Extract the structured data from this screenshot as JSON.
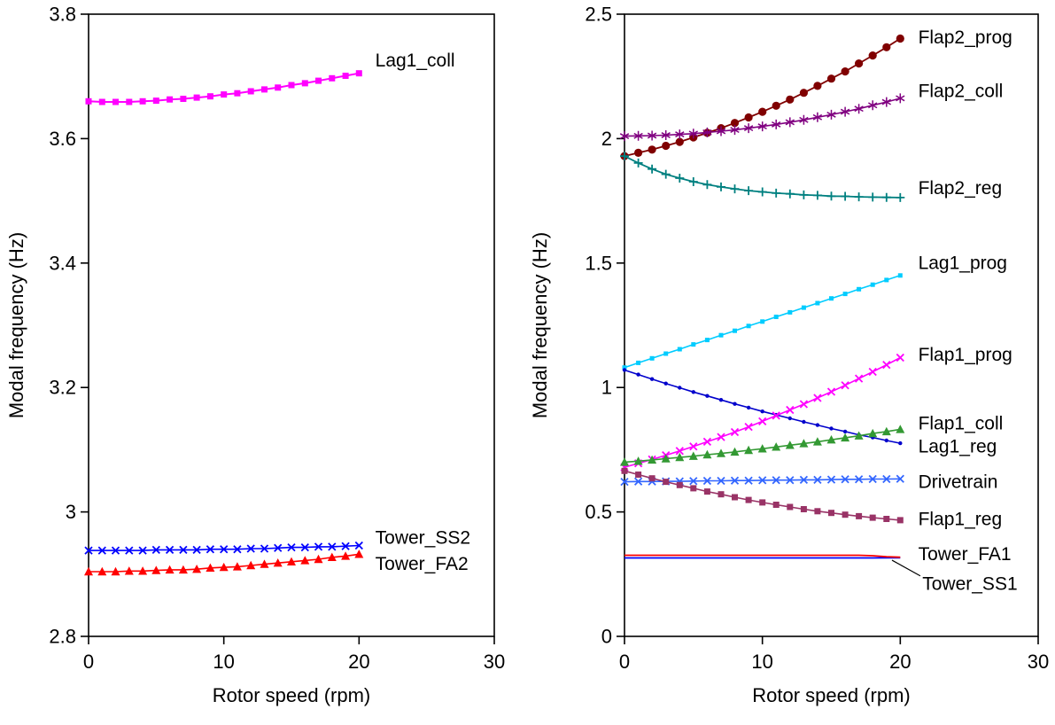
{
  "figure": {
    "background": "#ffffff"
  },
  "chart_data": [
    {
      "type": "line",
      "title": "",
      "xlabel": "Rotor speed (rpm)",
      "ylabel": "Modal frequency (Hz)",
      "xlim": [
        0,
        30
      ],
      "ylim": [
        2.8,
        3.8
      ],
      "grid": false,
      "legend": "inline-labels",
      "xticks": [
        {
          "v": 0,
          "label": "0"
        },
        {
          "v": 10,
          "label": "10"
        },
        {
          "v": 20,
          "label": "20"
        },
        {
          "v": 30,
          "label": "30"
        }
      ],
      "yticks": [
        {
          "v": 2.8,
          "label": "2.8"
        },
        {
          "v": 3.0,
          "label": "3"
        },
        {
          "v": 3.2,
          "label": "3.2"
        },
        {
          "v": 3.4,
          "label": "3.4"
        },
        {
          "v": 3.6,
          "label": "3.6"
        },
        {
          "v": 3.8,
          "label": "3.8"
        }
      ],
      "x": [
        0,
        1,
        2,
        3,
        4,
        5,
        6,
        7,
        8,
        9,
        10,
        11,
        12,
        13,
        14,
        15,
        16,
        17,
        18,
        19,
        20
      ],
      "series": [
        {
          "name": "Lag1_coll",
          "color": "#FF00FF",
          "marker": "square",
          "line_width": 2,
          "values": [
            3.66,
            3.659,
            3.659,
            3.659,
            3.66,
            3.661,
            3.663,
            3.664,
            3.666,
            3.668,
            3.671,
            3.673,
            3.676,
            3.679,
            3.682,
            3.686,
            3.689,
            3.693,
            3.697,
            3.701,
            3.705
          ],
          "label": {
            "text": "Lag1_coll",
            "x": 21.2,
            "y": 3.725
          }
        },
        {
          "name": "Tower_SS2",
          "color": "#0000FF",
          "marker": "x",
          "line_width": 1.6,
          "values": [
            2.938,
            2.938,
            2.938,
            2.938,
            2.938,
            2.939,
            2.939,
            2.939,
            2.939,
            2.94,
            2.94,
            2.94,
            2.941,
            2.941,
            2.942,
            2.943,
            2.943,
            2.944,
            2.944,
            2.945,
            2.946
          ],
          "label": {
            "text": "Tower_SS2",
            "x": 21.2,
            "y": 2.958
          }
        },
        {
          "name": "Tower_FA2",
          "color": "#FF0000",
          "marker": "triangle",
          "line_width": 1.6,
          "values": [
            2.904,
            2.904,
            2.904,
            2.905,
            2.905,
            2.906,
            2.907,
            2.907,
            2.908,
            2.91,
            2.911,
            2.912,
            2.914,
            2.916,
            2.918,
            2.92,
            2.922,
            2.924,
            2.927,
            2.929,
            2.932
          ],
          "label": {
            "text": "Tower_FA2",
            "x": 21.2,
            "y": 2.916
          }
        }
      ]
    },
    {
      "type": "line",
      "title": "",
      "xlabel": "Rotor speed (rpm)",
      "ylabel": "Modal frequency (Hz)",
      "xlim": [
        0,
        30
      ],
      "ylim": [
        0,
        2.5
      ],
      "grid": false,
      "legend": "inline-labels",
      "xticks": [
        {
          "v": 0,
          "label": "0"
        },
        {
          "v": 10,
          "label": "10"
        },
        {
          "v": 20,
          "label": "20"
        },
        {
          "v": 30,
          "label": "30"
        }
      ],
      "yticks": [
        {
          "v": 0,
          "label": "0"
        },
        {
          "v": 0.5,
          "label": "0.5"
        },
        {
          "v": 1.0,
          "label": "1"
        },
        {
          "v": 1.5,
          "label": "1.5"
        },
        {
          "v": 2.0,
          "label": "2"
        },
        {
          "v": 2.5,
          "label": "2.5"
        }
      ],
      "x": [
        0,
        1,
        2,
        3,
        4,
        5,
        6,
        7,
        8,
        9,
        10,
        11,
        12,
        13,
        14,
        15,
        16,
        17,
        18,
        19,
        20
      ],
      "series": [
        {
          "name": "Flap2_prog",
          "color": "#800000",
          "marker": "circle",
          "line_width": 1.8,
          "values": [
            1.93,
            1.943,
            1.956,
            1.971,
            1.987,
            2.005,
            2.023,
            2.042,
            2.063,
            2.085,
            2.108,
            2.132,
            2.157,
            2.184,
            2.212,
            2.241,
            2.27,
            2.302,
            2.334,
            2.367,
            2.402
          ],
          "label": {
            "text": "Flap2_prog",
            "x": 21.3,
            "y": 2.405
          }
        },
        {
          "name": "Flap2_coll",
          "color": "#800080",
          "marker": "asterisk",
          "line_width": 1.6,
          "values": [
            2.01,
            2.011,
            2.012,
            2.014,
            2.017,
            2.02,
            2.025,
            2.03,
            2.035,
            2.042,
            2.049,
            2.057,
            2.066,
            2.075,
            2.086,
            2.096,
            2.108,
            2.12,
            2.134,
            2.147,
            2.162
          ],
          "label": {
            "text": "Flap2_coll",
            "x": 21.3,
            "y": 2.19
          }
        },
        {
          "name": "Flap2_reg",
          "color": "#008080",
          "marker": "plus",
          "line_width": 1.8,
          "values": [
            1.93,
            1.902,
            1.878,
            1.857,
            1.841,
            1.827,
            1.815,
            1.806,
            1.798,
            1.791,
            1.786,
            1.781,
            1.778,
            1.774,
            1.772,
            1.769,
            1.768,
            1.766,
            1.765,
            1.764,
            1.763
          ],
          "label": {
            "text": "Flap2_reg",
            "x": 21.3,
            "y": 1.8
          }
        },
        {
          "name": "Lag1_prog",
          "color": "#00CCFF",
          "marker": "smallsquare",
          "line_width": 1.6,
          "values": [
            1.08,
            1.099,
            1.117,
            1.136,
            1.154,
            1.173,
            1.191,
            1.21,
            1.228,
            1.247,
            1.265,
            1.284,
            1.302,
            1.321,
            1.339,
            1.358,
            1.376,
            1.395,
            1.413,
            1.432,
            1.45
          ],
          "label": {
            "text": "Lag1_prog",
            "x": 21.3,
            "y": 1.5
          }
        },
        {
          "name": "Lag1_reg",
          "color": "#0000CC",
          "marker": "dot",
          "line_width": 1.6,
          "values": [
            1.07,
            1.052,
            1.034,
            1.016,
            0.999,
            0.982,
            0.966,
            0.95,
            0.934,
            0.919,
            0.904,
            0.89,
            0.876,
            0.862,
            0.849,
            0.835,
            0.823,
            0.81,
            0.799,
            0.787,
            0.776
          ],
          "label": {
            "text": "Lag1_reg",
            "x": 21.3,
            "y": 0.762
          }
        },
        {
          "name": "Flap1_prog",
          "color": "#FF00FF",
          "marker": "x",
          "line_width": 1.6,
          "values": [
            0.68,
            0.695,
            0.711,
            0.728,
            0.745,
            0.763,
            0.782,
            0.801,
            0.821,
            0.842,
            0.864,
            0.887,
            0.91,
            0.933,
            0.958,
            0.983,
            1.009,
            1.036,
            1.063,
            1.091,
            1.12
          ],
          "label": {
            "text": "Flap1_prog",
            "x": 21.3,
            "y": 1.13
          }
        },
        {
          "name": "Flap1_coll",
          "color": "#339933",
          "marker": "triangle",
          "line_width": 1.6,
          "values": [
            0.7,
            0.704,
            0.709,
            0.714,
            0.719,
            0.724,
            0.73,
            0.735,
            0.741,
            0.748,
            0.754,
            0.761,
            0.768,
            0.775,
            0.782,
            0.79,
            0.798,
            0.806,
            0.815,
            0.823,
            0.832
          ],
          "label": {
            "text": "Flap1_coll",
            "x": 21.3,
            "y": 0.855
          }
        },
        {
          "name": "Drivetrain",
          "color": "#3366FF",
          "marker": "x",
          "line_width": 1.6,
          "values": [
            0.621,
            0.622,
            0.622,
            0.623,
            0.623,
            0.624,
            0.625,
            0.625,
            0.626,
            0.626,
            0.627,
            0.628,
            0.628,
            0.629,
            0.629,
            0.63,
            0.631,
            0.631,
            0.632,
            0.632,
            0.633
          ],
          "label": {
            "text": "Drivetrain",
            "x": 21.3,
            "y": 0.62
          }
        },
        {
          "name": "Flap1_reg",
          "color": "#993366",
          "marker": "square",
          "line_width": 1.6,
          "values": [
            0.665,
            0.65,
            0.635,
            0.621,
            0.608,
            0.595,
            0.582,
            0.571,
            0.559,
            0.548,
            0.538,
            0.529,
            0.52,
            0.511,
            0.503,
            0.496,
            0.489,
            0.483,
            0.477,
            0.472,
            0.467
          ],
          "label": {
            "text": "Flap1_reg",
            "x": 21.3,
            "y": 0.47
          }
        },
        {
          "name": "Tower_SS1",
          "color": "#0000FF",
          "marker": "none",
          "line_width": 1.8,
          "values": [
            0.315,
            0.315,
            0.315,
            0.315,
            0.315,
            0.315,
            0.315,
            0.315,
            0.315,
            0.315,
            0.315,
            0.315,
            0.315,
            0.315,
            0.315,
            0.315,
            0.315,
            0.315,
            0.315,
            0.316,
            0.316
          ],
          "label": {
            "text": "Tower_SS1",
            "x": 21.6,
            "y": 0.21
          },
          "leader": {
            "x1": 21.45,
            "y1": 0.243,
            "x2": 19.4,
            "y2": 0.306
          }
        },
        {
          "name": "Tower_FA1",
          "color": "#FF0000",
          "marker": "none",
          "line_width": 1.8,
          "values": [
            0.326,
            0.326,
            0.326,
            0.326,
            0.326,
            0.326,
            0.326,
            0.326,
            0.326,
            0.326,
            0.326,
            0.326,
            0.326,
            0.326,
            0.326,
            0.326,
            0.326,
            0.326,
            0.324,
            0.32,
            0.318
          ],
          "label": {
            "text": "Tower_FA1",
            "x": 21.3,
            "y": 0.33
          }
        }
      ]
    }
  ]
}
